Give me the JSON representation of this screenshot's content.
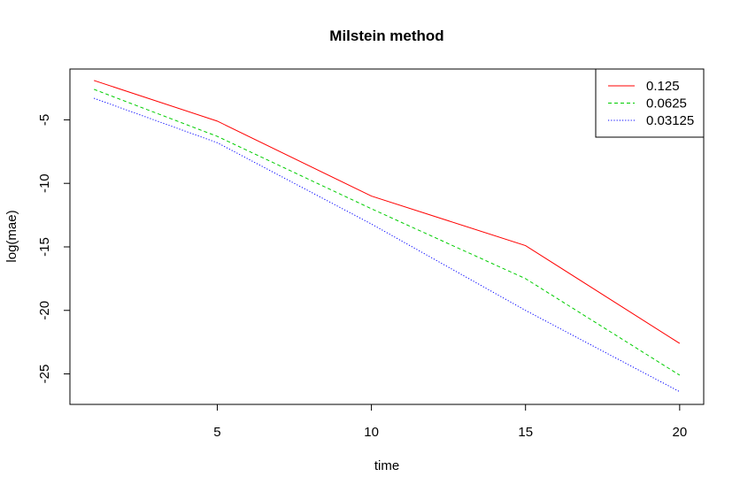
{
  "chart_data": {
    "type": "line",
    "title": "Milstein method",
    "xlabel": "time",
    "ylabel": "log(mae)",
    "xlim": [
      0.22,
      20.78
    ],
    "ylim": [
      -27.4,
      -1.0
    ],
    "xticks": [
      5,
      10,
      15,
      20
    ],
    "yticks": [
      -5,
      -10,
      -15,
      -20,
      -25
    ],
    "grid": false,
    "legend": "top-right",
    "x": [
      1,
      5,
      10,
      15,
      20
    ],
    "series": [
      {
        "name": "0.125",
        "color": "#ff0000",
        "dash": "solid",
        "values": [
          -1.9,
          -5.1,
          -11.0,
          -14.9,
          -22.6
        ]
      },
      {
        "name": "0.0625",
        "color": "#00cd00",
        "dash": "dashed",
        "values": [
          -2.6,
          -6.3,
          -12.0,
          -17.5,
          -25.1
        ]
      },
      {
        "name": "0.03125",
        "color": "#0000ff",
        "dash": "dotted",
        "values": [
          -3.3,
          -6.8,
          -13.2,
          -20.0,
          -26.4
        ]
      }
    ]
  }
}
